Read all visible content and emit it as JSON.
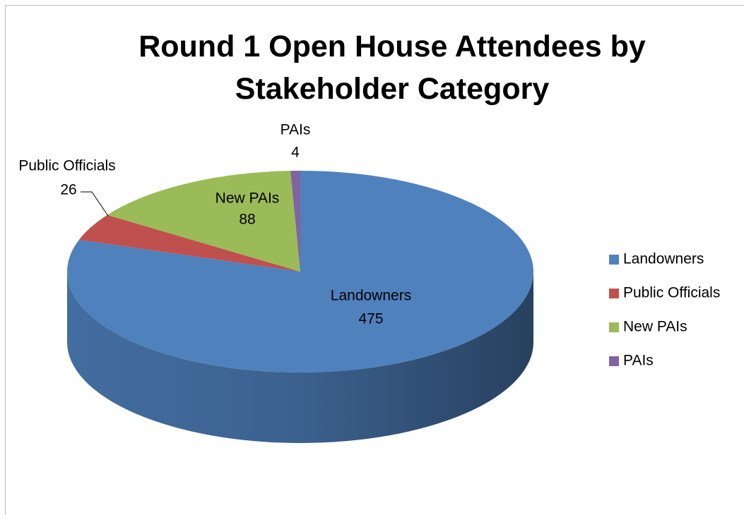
{
  "chart_data": {
    "type": "pie",
    "title": "Round 1 Open House Attendees by Stakeholder Category",
    "categories": [
      "Landowners",
      "Public Officials",
      "New PAIs",
      "PAIs"
    ],
    "values": [
      475,
      26,
      88,
      4
    ],
    "colors": [
      "#4f81bd",
      "#c0504d",
      "#9bbb59",
      "#8064a2"
    ],
    "legend": "right"
  }
}
